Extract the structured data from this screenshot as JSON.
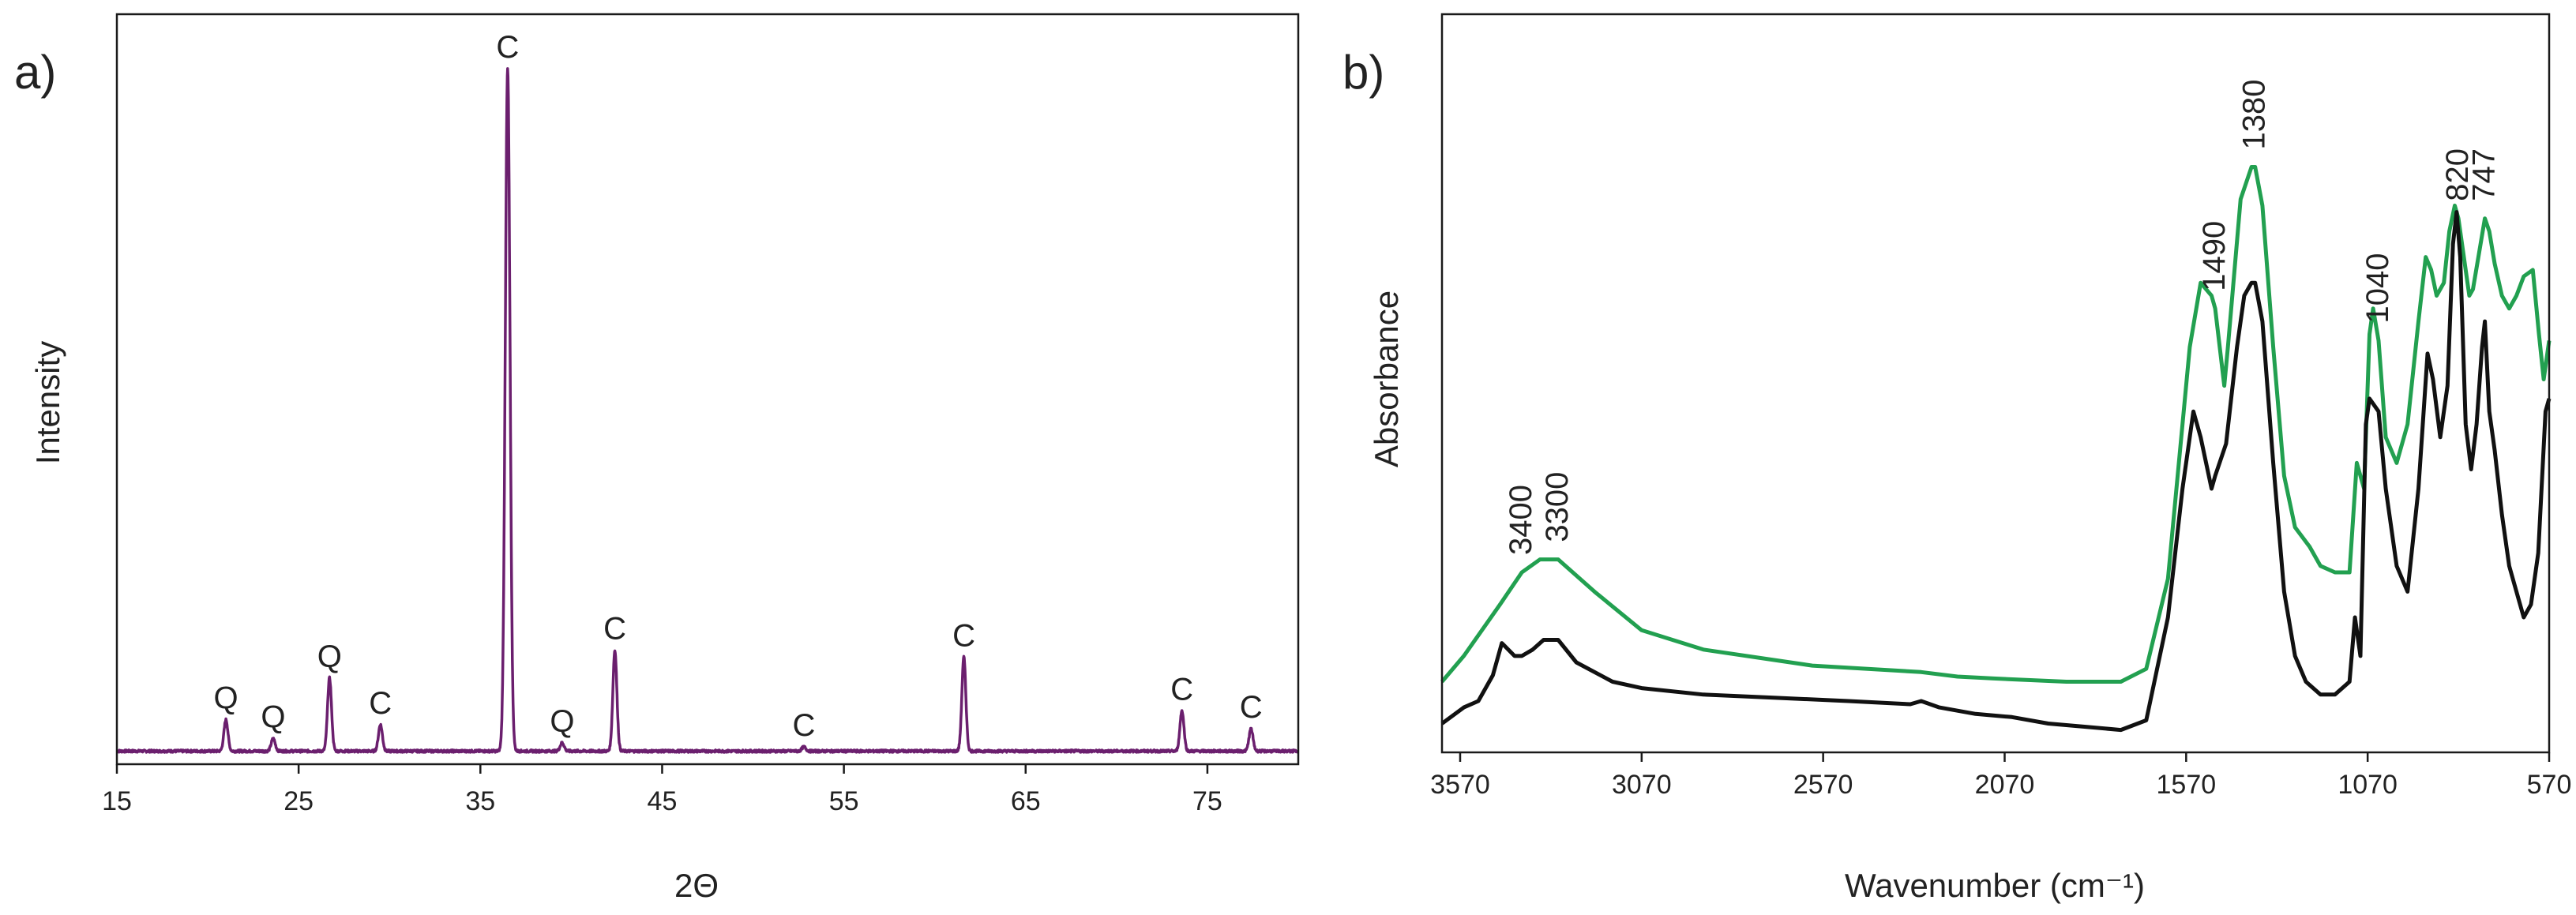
{
  "chart_data": [
    {
      "type": "line",
      "panel_label": "a)",
      "xlabel": "2Θ",
      "ylabel": "Intensity",
      "xlim": [
        15,
        80
      ],
      "ylim": [
        0,
        100
      ],
      "x_ticks": [
        15,
        25,
        35,
        45,
        55,
        65,
        75
      ],
      "x_tick_labels": [
        "15",
        "25",
        "35",
        "45",
        "55",
        "65",
        "75"
      ],
      "line_color": "#6b1f6e",
      "baseline": 1.2,
      "peaks": [
        {
          "x": 21.0,
          "height": 4.5,
          "label": "Q"
        },
        {
          "x": 23.6,
          "height": 1.8,
          "label": "Q"
        },
        {
          "x": 26.7,
          "height": 10.5,
          "label": "Q"
        },
        {
          "x": 29.5,
          "height": 3.8,
          "label": "C"
        },
        {
          "x": 36.5,
          "height": 98.0,
          "label": "C"
        },
        {
          "x": 39.5,
          "height": 1.2,
          "label": "Q"
        },
        {
          "x": 42.4,
          "height": 14.5,
          "label": "C"
        },
        {
          "x": 52.8,
          "height": 0.6,
          "label": "C"
        },
        {
          "x": 61.6,
          "height": 13.5,
          "label": "C"
        },
        {
          "x": 73.6,
          "height": 5.8,
          "label": "C"
        },
        {
          "x": 77.4,
          "height": 3.2,
          "label": "C"
        }
      ]
    },
    {
      "type": "line",
      "panel_label": "b)",
      "xlabel": "Wavenumber (cm⁻¹)",
      "ylabel": "Absorbance",
      "xlim": [
        3620,
        570
      ],
      "ylim": [
        0,
        100
      ],
      "x_ticks": [
        3570,
        3070,
        2570,
        2070,
        1570,
        1070,
        570
      ],
      "x_tick_labels": [
        "3570",
        "3070",
        "2570",
        "2070",
        "1570",
        "1070",
        "570"
      ],
      "peak_labels": [
        "3400",
        "3300",
        "1490",
        "1380",
        "1040",
        "820",
        "747"
      ],
      "series": [
        {
          "name": "green",
          "color": "#22a050",
          "points": [
            [
              3620,
              10
            ],
            [
              3560,
              14
            ],
            [
              3460,
              22
            ],
            [
              3400,
              27
            ],
            [
              3350,
              29
            ],
            [
              3300,
              29
            ],
            [
              3200,
              24
            ],
            [
              3070,
              18
            ],
            [
              2900,
              15
            ],
            [
              2600,
              12.5
            ],
            [
              2300,
              11.5
            ],
            [
              2200,
              10.8
            ],
            [
              2100,
              10.5
            ],
            [
              1900,
              10
            ],
            [
              1750,
              10
            ],
            [
              1680,
              12
            ],
            [
              1620,
              26
            ],
            [
              1560,
              62
            ],
            [
              1530,
              72
            ],
            [
              1500,
              70
            ],
            [
              1490,
              68
            ],
            [
              1465,
              56
            ],
            [
              1455,
              62
            ],
            [
              1420,
              85
            ],
            [
              1390,
              90
            ],
            [
              1380,
              90
            ],
            [
              1360,
              84
            ],
            [
              1330,
              62
            ],
            [
              1300,
              42
            ],
            [
              1270,
              34
            ],
            [
              1230,
              31
            ],
            [
              1200,
              28
            ],
            [
              1160,
              27
            ],
            [
              1120,
              27
            ],
            [
              1100,
              44
            ],
            [
              1080,
              40
            ],
            [
              1065,
              64
            ],
            [
              1055,
              68
            ],
            [
              1040,
              63
            ],
            [
              1020,
              48
            ],
            [
              990,
              44
            ],
            [
              960,
              50
            ],
            [
              930,
              66
            ],
            [
              910,
              76
            ],
            [
              895,
              74
            ],
            [
              880,
              70
            ],
            [
              860,
              72
            ],
            [
              845,
              80
            ],
            [
              830,
              84
            ],
            [
              820,
              82
            ],
            [
              805,
              76
            ],
            [
              790,
              70
            ],
            [
              780,
              71
            ],
            [
              765,
              76
            ],
            [
              747,
              82
            ],
            [
              735,
              80
            ],
            [
              720,
              75
            ],
            [
              700,
              70
            ],
            [
              680,
              68
            ],
            [
              660,
              70
            ],
            [
              640,
              73
            ],
            [
              615,
              74
            ],
            [
              598,
              64
            ],
            [
              585,
              57
            ],
            [
              570,
              63
            ]
          ]
        },
        {
          "name": "black",
          "color": "#111111",
          "points": [
            [
              3620,
              3.5
            ],
            [
              3560,
              6
            ],
            [
              3520,
              7
            ],
            [
              3480,
              11
            ],
            [
              3455,
              16
            ],
            [
              3420,
              14
            ],
            [
              3400,
              14
            ],
            [
              3370,
              15
            ],
            [
              3340,
              16.5
            ],
            [
              3300,
              16.5
            ],
            [
              3250,
              13
            ],
            [
              3150,
              10
            ],
            [
              3070,
              9
            ],
            [
              2900,
              8
            ],
            [
              2700,
              7.5
            ],
            [
              2500,
              7
            ],
            [
              2330,
              6.5
            ],
            [
              2300,
              7
            ],
            [
              2250,
              6
            ],
            [
              2150,
              5
            ],
            [
              2050,
              4.5
            ],
            [
              1950,
              3.5
            ],
            [
              1850,
              3
            ],
            [
              1750,
              2.5
            ],
            [
              1680,
              4
            ],
            [
              1620,
              20
            ],
            [
              1580,
              40
            ],
            [
              1550,
              52
            ],
            [
              1530,
              48
            ],
            [
              1500,
              40
            ],
            [
              1490,
              42
            ],
            [
              1460,
              47
            ],
            [
              1430,
              62
            ],
            [
              1410,
              70
            ],
            [
              1390,
              72
            ],
            [
              1380,
              72
            ],
            [
              1360,
              66
            ],
            [
              1330,
              44
            ],
            [
              1300,
              24
            ],
            [
              1270,
              14
            ],
            [
              1240,
              10
            ],
            [
              1200,
              8
            ],
            [
              1160,
              8
            ],
            [
              1120,
              10
            ],
            [
              1105,
              20
            ],
            [
              1090,
              14
            ],
            [
              1075,
              50
            ],
            [
              1065,
              54
            ],
            [
              1040,
              52
            ],
            [
              1020,
              40
            ],
            [
              990,
              28
            ],
            [
              960,
              24
            ],
            [
              930,
              40
            ],
            [
              905,
              61
            ],
            [
              890,
              57
            ],
            [
              870,
              48
            ],
            [
              850,
              56
            ],
            [
              835,
              78
            ],
            [
              825,
              83
            ],
            [
              815,
              76
            ],
            [
              800,
              50
            ],
            [
              785,
              43
            ],
            [
              770,
              50
            ],
            [
              755,
              62
            ],
            [
              747,
              66
            ],
            [
              735,
              52
            ],
            [
              720,
              46
            ],
            [
              700,
              36
            ],
            [
              680,
              28
            ],
            [
              660,
              24
            ],
            [
              640,
              20
            ],
            [
              620,
              22
            ],
            [
              600,
              30
            ],
            [
              580,
              52
            ],
            [
              570,
              54
            ]
          ]
        }
      ]
    }
  ]
}
